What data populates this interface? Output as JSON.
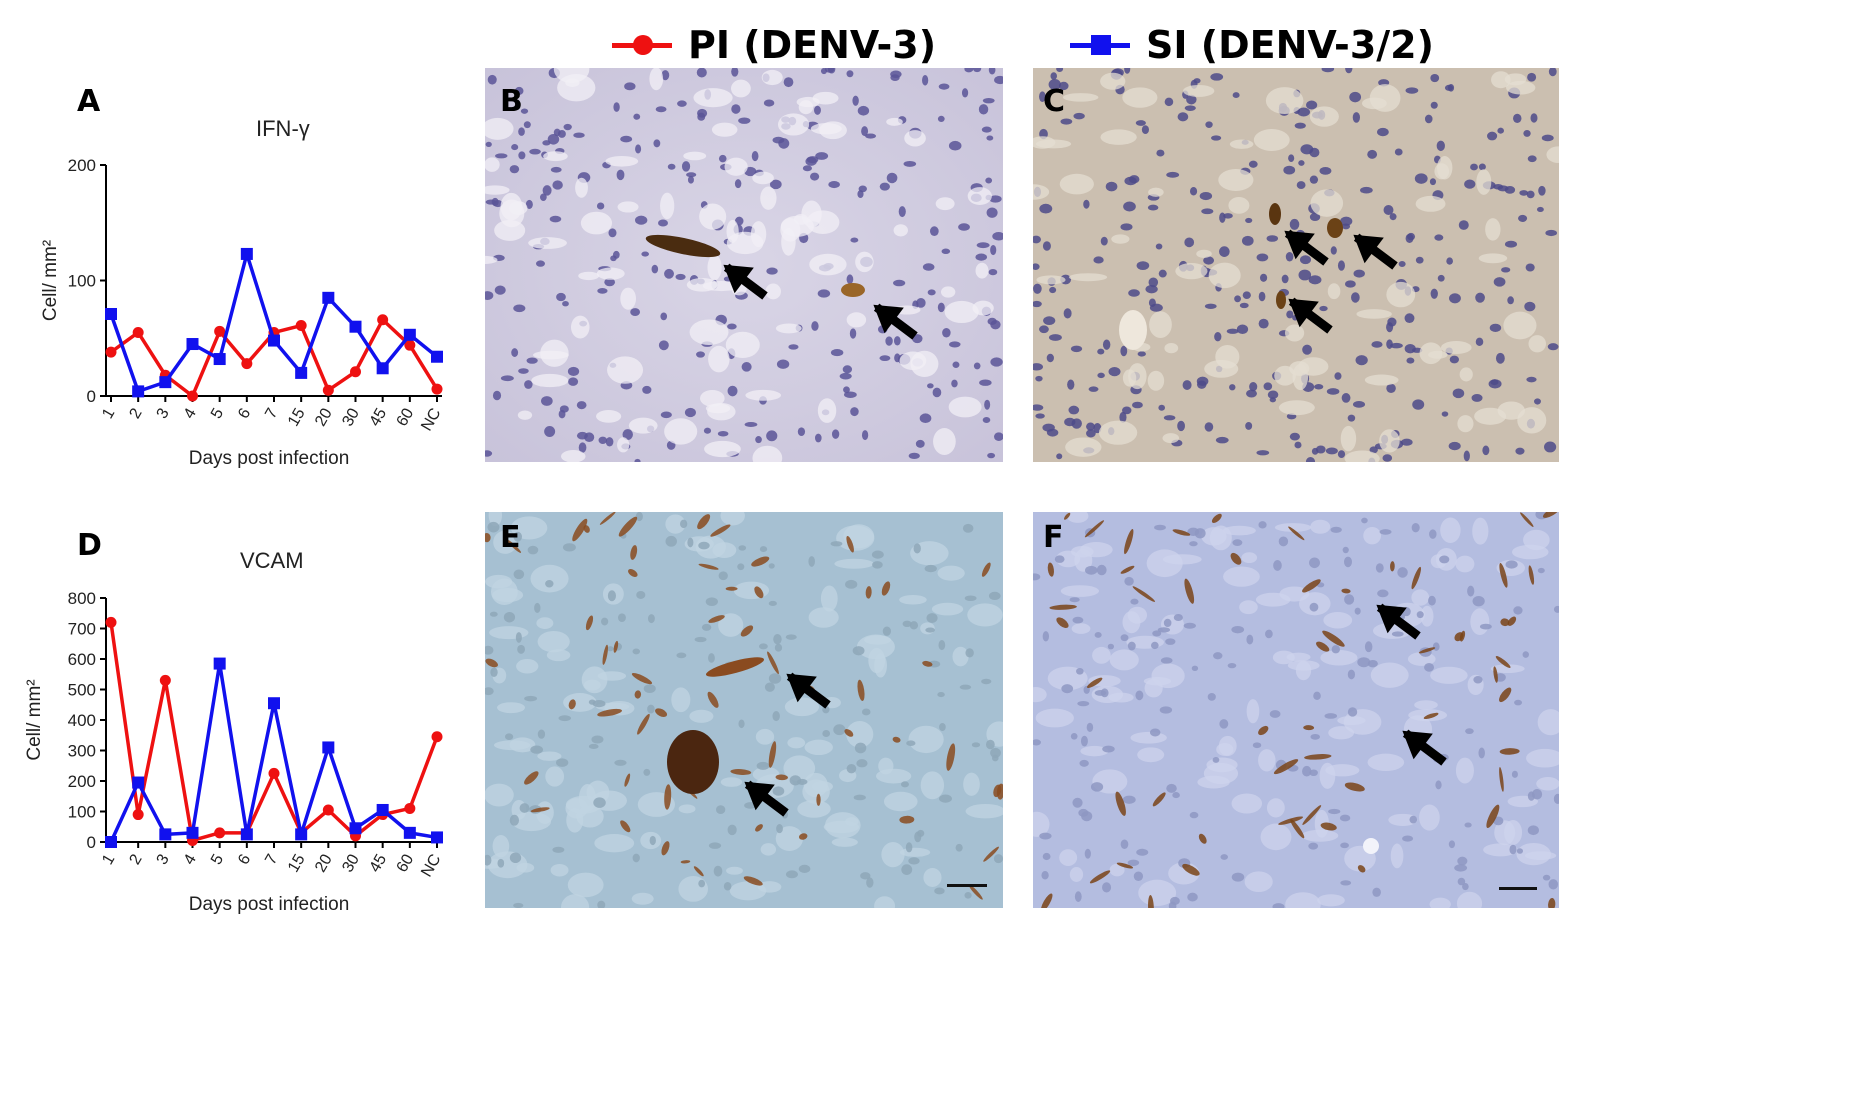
{
  "legend": {
    "pi_label": "PI (DENV-3)",
    "si_label": "SI (DENV-3/2)",
    "pi_color": "#ee1111",
    "si_color": "#1111ee"
  },
  "panels": {
    "A": "A",
    "B": "B",
    "C": "C",
    "D": "D",
    "E": "E",
    "F": "F"
  },
  "chart_data": [
    {
      "type": "line",
      "title": "IFN-γ",
      "xlabel": "Days post infection",
      "ylabel": "Cell/ mm²",
      "categories": [
        "1",
        "2",
        "3",
        "4",
        "5",
        "6",
        "7",
        "15",
        "20",
        "30",
        "45",
        "60",
        "NC"
      ],
      "yticks": [
        0,
        100,
        200
      ],
      "ylim": [
        0,
        200
      ],
      "series": [
        {
          "name": "PI (DENV-3)",
          "color": "#ee1111",
          "marker": "circle",
          "values": [
            38,
            55,
            18,
            0,
            56,
            28,
            55,
            61,
            5,
            21,
            66,
            44,
            6
          ]
        },
        {
          "name": "SI (DENV-3/2)",
          "color": "#1111ee",
          "marker": "square",
          "values": [
            71,
            4,
            12,
            45,
            32,
            123,
            48,
            20,
            85,
            60,
            24,
            53,
            34
          ]
        }
      ]
    },
    {
      "type": "line",
      "title": "VCAM",
      "xlabel": "Days post infection",
      "ylabel": "Cell/ mm²",
      "categories": [
        "1",
        "2",
        "3",
        "4",
        "5",
        "6",
        "7",
        "15",
        "20",
        "30",
        "45",
        "60",
        "NC"
      ],
      "yticks": [
        0,
        100,
        200,
        300,
        400,
        500,
        600,
        700,
        800
      ],
      "ylim": [
        0,
        800
      ],
      "series": [
        {
          "name": "PI (DENV-3)",
          "color": "#ee1111",
          "marker": "circle",
          "values": [
            720,
            90,
            530,
            5,
            30,
            30,
            225,
            30,
            105,
            20,
            90,
            110,
            345
          ]
        },
        {
          "name": "SI (DENV-3/2)",
          "color": "#1111ee",
          "marker": "square",
          "values": [
            0,
            195,
            25,
            30,
            585,
            25,
            455,
            25,
            310,
            45,
            105,
            30,
            15
          ]
        }
      ]
    }
  ]
}
